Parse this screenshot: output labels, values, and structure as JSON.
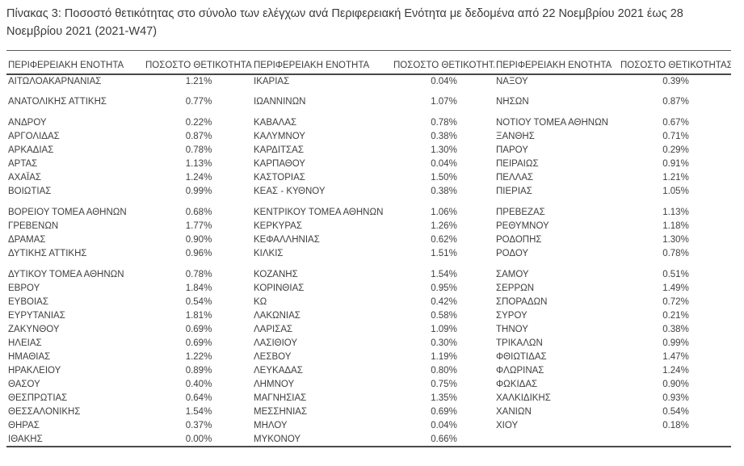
{
  "title": "Πίνακας 3: Ποσοστό θετικότητας στο σύνολο των ελέγχων ανά Περιφερειακή Ενότητα με δεδομένα από 22 Νοεμβρίου 2021 έως 28 Νοεμβρίου 2021 (2021-W47)",
  "table": {
    "column_headers": {
      "region": "ΠΕΡΙΦΕΡΕΙΑΚΗ ΕΝΟΤΗΤΑ",
      "positivity": "ΠΟΣΟΣΤΟ ΘΕΤΙΚΟΤΗΤΑΣ"
    },
    "rows": [
      [
        "ΑΙΤΩΛΟΑΚΑΡΝΑΝΙΑΣ",
        "1.21%",
        "ΙΚΑΡΙΑΣ",
        "0.04%",
        "ΝΑΞΟΥ",
        "0.39%"
      ],
      [
        "",
        "",
        "",
        "",
        "",
        ""
      ],
      [
        "ΑΝΑΤΟΛΙΚΗΣ ΑΤΤΙΚΗΣ",
        "0.77%",
        "ΙΩΑΝΝΙΝΩΝ",
        "1.07%",
        "ΝΗΣΩΝ",
        "0.87%"
      ],
      [
        "",
        "",
        "",
        "",
        "",
        ""
      ],
      [
        "ΑΝΔΡΟΥ",
        "0.22%",
        "ΚΑΒΑΛΑΣ",
        "0.78%",
        "ΝΟΤΙΟΥ ΤΟΜΕΑ ΑΘΗΝΩΝ",
        "0.67%"
      ],
      [
        "ΑΡΓΟΛΙΔΑΣ",
        "0.87%",
        "ΚΑΛΥΜΝΟΥ",
        "0.38%",
        "ΞΑΝΘΗΣ",
        "0.71%"
      ],
      [
        "ΑΡΚΑΔΙΑΣ",
        "0.78%",
        "ΚΑΡΔΙΤΣΑΣ",
        "1.30%",
        "ΠΑΡΟΥ",
        "0.29%"
      ],
      [
        "ΑΡΤΑΣ",
        "1.13%",
        "ΚΑΡΠΑΘΟΥ",
        "0.04%",
        "ΠΕΙΡΑΙΩΣ",
        "0.91%"
      ],
      [
        "ΑΧΑΪΑΣ",
        "1.24%",
        "ΚΑΣΤΟΡΙΑΣ",
        "1.50%",
        "ΠΕΛΛΑΣ",
        "1.21%"
      ],
      [
        "ΒΟΙΩΤΙΑΣ",
        "0.99%",
        "ΚΕΑΣ - ΚΥΘΝΟΥ",
        "0.38%",
        "ΠΙΕΡΙΑΣ",
        "1.05%"
      ],
      [
        "",
        "",
        "",
        "",
        "",
        ""
      ],
      [
        "ΒΟΡΕΙΟΥ ΤΟΜΕΑ ΑΘΗΝΩΝ",
        "0.68%",
        "ΚΕΝΤΡΙΚΟΥ ΤΟΜΕΑ ΑΘΗΝΩΝ",
        "1.06%",
        "ΠΡΕΒΕΖΑΣ",
        "1.13%"
      ],
      [
        "ΓΡΕΒΕΝΩΝ",
        "1.77%",
        "ΚΕΡΚΥΡΑΣ",
        "1.26%",
        "ΡΕΘΥΜΝΟΥ",
        "1.18%"
      ],
      [
        "ΔΡΑΜΑΣ",
        "0.90%",
        "ΚΕΦΑΛΛΗΝΙΑΣ",
        "0.62%",
        "ΡΟΔΟΠΗΣ",
        "1.30%"
      ],
      [
        "ΔΥΤΙΚΗΣ ΑΤΤΙΚΗΣ",
        "0.96%",
        "ΚΙΛΚΙΣ",
        "1.51%",
        "ΡΟΔΟΥ",
        "0.78%"
      ],
      [
        "",
        "",
        "",
        "",
        "",
        ""
      ],
      [
        "ΔΥΤΙΚΟΥ ΤΟΜΕΑ ΑΘΗΝΩΝ",
        "0.78%",
        "ΚΟΖΑΝΗΣ",
        "1.54%",
        "ΣΑΜΟΥ",
        "0.51%"
      ],
      [
        "ΕΒΡΟΥ",
        "1.84%",
        "ΚΟΡΙΝΘΙΑΣ",
        "0.95%",
        "ΣΕΡΡΩΝ",
        "1.49%"
      ],
      [
        "ΕΥΒΟΙΑΣ",
        "0.54%",
        "ΚΩ",
        "0.42%",
        "ΣΠΟΡΑΔΩΝ",
        "0.72%"
      ],
      [
        "ΕΥΡΥΤΑΝΙΑΣ",
        "1.81%",
        "ΛΑΚΩΝΙΑΣ",
        "0.58%",
        "ΣΥΡΟΥ",
        "0.21%"
      ],
      [
        "ΖΑΚΥΝΘΟΥ",
        "0.69%",
        "ΛΑΡΙΣΑΣ",
        "1.09%",
        "ΤΗΝΟΥ",
        "0.38%"
      ],
      [
        "ΗΛΕΙΑΣ",
        "0.69%",
        "ΛΑΣΙΘΙΟΥ",
        "0.30%",
        "ΤΡΙΚΑΛΩΝ",
        "0.99%"
      ],
      [
        "ΗΜΑΘΙΑΣ",
        "1.22%",
        "ΛΕΣΒΟΥ",
        "1.19%",
        "ΦΘΙΩΤΙΔΑΣ",
        "1.47%"
      ],
      [
        "ΗΡΑΚΛΕΙΟΥ",
        "0.89%",
        "ΛΕΥΚΑΔΑΣ",
        "0.80%",
        "ΦΛΩΡΙΝΑΣ",
        "1.24%"
      ],
      [
        "ΘΑΣΟΥ",
        "0.40%",
        "ΛΗΜΝΟΥ",
        "0.75%",
        "ΦΩΚΙΔΑΣ",
        "0.90%"
      ],
      [
        "ΘΕΣΠΡΩΤΙΑΣ",
        "0.64%",
        "ΜΑΓΝΗΣΙΑΣ",
        "1.35%",
        "ΧΑΛΚΙΔΙΚΗΣ",
        "0.93%"
      ],
      [
        "ΘΕΣΣΑΛΟΝΙΚΗΣ",
        "1.54%",
        "ΜΕΣΣΗΝΙΑΣ",
        "0.69%",
        "ΧΑΝΙΩΝ",
        "0.54%"
      ],
      [
        "ΘΗΡΑΣ",
        "0.37%",
        "ΜΗΛΟΥ",
        "0.04%",
        "ΧΙΟΥ",
        "0.18%"
      ],
      [
        "ΙΘΑΚΗΣ",
        "0.00%",
        "ΜΥΚΟΝΟΥ",
        "0.66%",
        "",
        ""
      ]
    ]
  },
  "colors": {
    "text": "#3f3f3f",
    "rule": "#4b4b4b",
    "background": "#ffffff"
  }
}
